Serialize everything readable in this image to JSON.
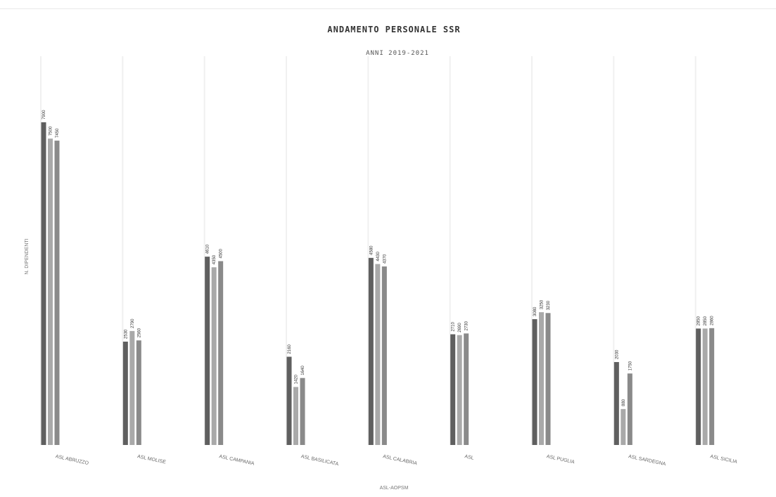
{
  "chart_data": {
    "type": "bar",
    "title": "ANDAMENTO PERSONALE SSR",
    "subtitle": "ANNI 2019-2021",
    "xlabel": "ASL-AOPSM",
    "ylabel": "N. DIPENDENTI",
    "ylim": [
      0,
      9000
    ],
    "grid": "vertical",
    "legend": "none",
    "categories": [
      "ASL ABRUZZO",
      "ASL MOLISE",
      "ASL CAMPANIA",
      "ASL BASILICATA",
      "ASL CALABRIA",
      "ASL",
      "ASL PUGLIA",
      "ASL SARDEGNA",
      "ASL SICILIA"
    ],
    "series": [
      {
        "values": [
          7900,
          2530,
          4610,
          2160,
          4580,
          2710,
          3080,
          2030,
          2850
        ]
      },
      {
        "values": [
          7500,
          2790,
          4350,
          1420,
          4430,
          2690,
          3250,
          880,
          2850
        ]
      },
      {
        "values": [
          7450,
          2560,
          4500,
          1640,
          4370,
          2730,
          3230,
          1750,
          2860
        ]
      }
    ],
    "colors": [
      "#5f5f5f",
      "#a9a9a9",
      "#8a8a8a"
    ]
  }
}
